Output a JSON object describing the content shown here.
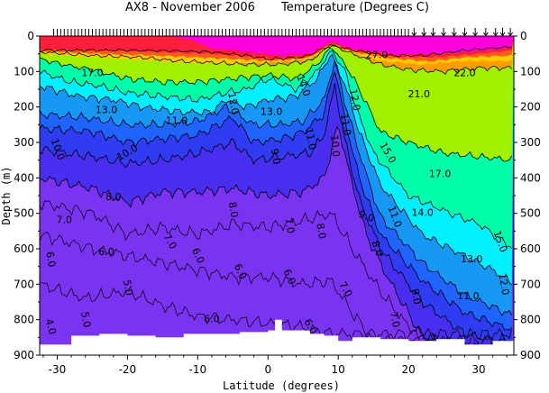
{
  "chart_data": {
    "type": "heatmap",
    "title_left": "AX8 - November 2006",
    "title_right": "Temperature (Degrees C)",
    "xlabel": "Latitude (degrees)",
    "ylabel": "Depth (m)",
    "xlim": [
      -32.5,
      35
    ],
    "ylim": [
      0,
      900
    ],
    "y_inverted": true,
    "x_ticks": [
      -30,
      -20,
      -10,
      0,
      10,
      20,
      30
    ],
    "y_ticks": [
      0,
      100,
      200,
      300,
      400,
      500,
      600,
      700,
      800,
      900
    ],
    "color_bands": [
      {
        "min": 0,
        "max": 8,
        "color": "#7a33f0"
      },
      {
        "min": 8,
        "max": 9,
        "color": "#4a2ef0"
      },
      {
        "min": 9,
        "max": 10,
        "color": "#2f3cf2"
      },
      {
        "min": 10,
        "max": 11,
        "color": "#1f64ff"
      },
      {
        "min": 11,
        "max": 12,
        "color": "#1898f5"
      },
      {
        "min": 12,
        "max": 13,
        "color": "#12c0f5"
      },
      {
        "min": 13,
        "max": 14,
        "color": "#00f0ff"
      },
      {
        "min": 14,
        "max": 15,
        "color": "#00ffa8"
      },
      {
        "min": 15,
        "max": 16,
        "color": "#13e04b"
      },
      {
        "min": 16,
        "max": 17,
        "color": "#4ee028"
      },
      {
        "min": 17,
        "max": 18,
        "color": "#a0f000"
      },
      {
        "min": 18,
        "max": 20,
        "color": "#f0f000"
      },
      {
        "min": 20,
        "max": 22,
        "color": "#ffcc00"
      },
      {
        "min": 22,
        "max": 24,
        "color": "#ff9c00"
      },
      {
        "min": 24,
        "max": 26,
        "color": "#ff5a1e"
      },
      {
        "min": 26,
        "max": 27,
        "color": "#ff1e3c"
      },
      {
        "min": 27,
        "max": 40,
        "color": "#ff00dc"
      }
    ],
    "isotherms": [
      {
        "value": 27,
        "depth": [
          [
            -32.5,
            40
          ],
          [
            -20,
            40
          ],
          [
            -13,
            42
          ],
          [
            -8,
            45
          ],
          [
            -3,
            55
          ],
          [
            0,
            65
          ],
          [
            5,
            60
          ],
          [
            9,
            25
          ],
          [
            12,
            40
          ],
          [
            17,
            55
          ],
          [
            22,
            55
          ],
          [
            28,
            40
          ],
          [
            35,
            30
          ]
        ]
      },
      {
        "value": 22,
        "depth": [
          [
            -32.5,
            45
          ],
          [
            -25,
            55
          ],
          [
            -18,
            60
          ],
          [
            -13,
            70
          ],
          [
            -8,
            75
          ],
          [
            -3,
            80
          ],
          [
            2,
            80
          ],
          [
            6,
            70
          ],
          [
            9,
            25
          ],
          [
            12,
            50
          ],
          [
            16,
            80
          ],
          [
            20,
            95
          ],
          [
            25,
            100
          ],
          [
            30,
            90
          ],
          [
            35,
            90
          ]
        ]
      },
      {
        "value": 17,
        "depth": [
          [
            -32.5,
            65
          ],
          [
            -28,
            85
          ],
          [
            -25,
            95
          ],
          [
            -20,
            120
          ],
          [
            -15,
            130
          ],
          [
            -10,
            130
          ],
          [
            -5,
            120
          ],
          [
            0,
            110
          ],
          [
            4,
            120
          ],
          [
            7,
            80
          ],
          [
            9,
            30
          ],
          [
            11,
            80
          ],
          [
            13,
            150
          ],
          [
            16,
            270
          ],
          [
            20,
            300
          ],
          [
            25,
            330
          ],
          [
            30,
            340
          ],
          [
            35,
            350
          ]
        ]
      },
      {
        "value": 14,
        "depth": [
          [
            -32.5,
            100
          ],
          [
            -28,
            130
          ],
          [
            -24,
            140
          ],
          [
            -20,
            160
          ],
          [
            -15,
            170
          ],
          [
            -10,
            180
          ],
          [
            -6,
            160
          ],
          [
            -3,
            150
          ],
          [
            0,
            120
          ],
          [
            4,
            150
          ],
          [
            7,
            100
          ],
          [
            9,
            40
          ],
          [
            11,
            100
          ],
          [
            12.5,
            200
          ],
          [
            15,
            330
          ],
          [
            20,
            450
          ],
          [
            26,
            500
          ],
          [
            30,
            530
          ],
          [
            35,
            600
          ]
        ]
      },
      {
        "value": 13,
        "depth": [
          [
            -32.5,
            140
          ],
          [
            -27,
            170
          ],
          [
            -22,
            180
          ],
          [
            -18,
            200
          ],
          [
            -12,
            215
          ],
          [
            -8,
            215
          ],
          [
            -6,
            180
          ],
          [
            -3,
            200
          ],
          [
            0,
            180
          ],
          [
            4,
            170
          ],
          [
            7,
            120
          ],
          [
            9,
            50
          ],
          [
            11,
            140
          ],
          [
            13,
            270
          ],
          [
            16,
            420
          ],
          [
            22,
            560
          ],
          [
            28,
            620
          ],
          [
            32,
            660
          ],
          [
            35,
            700
          ]
        ]
      },
      {
        "value": 11,
        "depth": [
          [
            -32.5,
            220
          ],
          [
            -26,
            230
          ],
          [
            -20,
            250
          ],
          [
            -15,
            250
          ],
          [
            -10,
            240
          ],
          [
            -6,
            200
          ],
          [
            -2,
            250
          ],
          [
            2,
            250
          ],
          [
            5,
            240
          ],
          [
            8,
            180
          ],
          [
            9.5,
            70
          ],
          [
            11,
            190
          ],
          [
            13,
            330
          ],
          [
            16,
            510
          ],
          [
            22,
            640
          ],
          [
            28,
            730
          ],
          [
            35,
            790
          ]
        ]
      },
      {
        "value": 10,
        "depth": [
          [
            -32.5,
            260
          ],
          [
            -25,
            270
          ],
          [
            -20,
            300
          ],
          [
            -15,
            290
          ],
          [
            -10,
            280
          ],
          [
            -5,
            230
          ],
          [
            -2,
            300
          ],
          [
            2,
            290
          ],
          [
            5,
            270
          ],
          [
            8,
            220
          ],
          [
            9.5,
            90
          ],
          [
            11,
            240
          ],
          [
            13,
            400
          ],
          [
            16,
            560
          ],
          [
            22,
            690
          ],
          [
            28,
            780
          ],
          [
            35,
            830
          ]
        ]
      },
      {
        "value": 9,
        "depth": [
          [
            -32.5,
            320
          ],
          [
            -25,
            340
          ],
          [
            -20,
            360
          ],
          [
            -15,
            350
          ],
          [
            -10,
            330
          ],
          [
            -5,
            300
          ],
          [
            -2,
            350
          ],
          [
            2,
            340
          ],
          [
            6,
            330
          ],
          [
            8,
            280
          ],
          [
            9.5,
            140
          ],
          [
            11,
            300
          ],
          [
            13,
            460
          ],
          [
            16,
            600
          ],
          [
            22,
            750
          ],
          [
            28,
            840
          ],
          [
            35,
            870
          ]
        ]
      },
      {
        "value": 8,
        "depth": [
          [
            -32.5,
            400
          ],
          [
            -25,
            430
          ],
          [
            -20,
            470
          ],
          [
            -15,
            440
          ],
          [
            -10,
            440
          ],
          [
            -5,
            430
          ],
          [
            0,
            450
          ],
          [
            5,
            440
          ],
          [
            8,
            400
          ],
          [
            10,
            250
          ],
          [
            12,
            420
          ],
          [
            14,
            560
          ],
          [
            17,
            680
          ],
          [
            22,
            850
          ],
          [
            35,
            900
          ]
        ]
      }
    ],
    "bottom_depth": [
      [
        -32.5,
        870
      ],
      [
        -30,
        870
      ],
      [
        -28,
        845
      ],
      [
        -24,
        840
      ],
      [
        -20,
        845
      ],
      [
        -16,
        850
      ],
      [
        -12,
        840
      ],
      [
        -8,
        840
      ],
      [
        -4,
        835
      ],
      [
        0,
        830
      ],
      [
        1,
        800
      ],
      [
        2,
        830
      ],
      [
        6,
        840
      ],
      [
        8,
        845
      ],
      [
        10,
        860
      ],
      [
        12,
        850
      ],
      [
        16,
        855
      ],
      [
        20,
        860
      ],
      [
        24,
        855
      ],
      [
        28,
        870
      ],
      [
        32,
        860
      ],
      [
        35,
        860
      ]
    ],
    "contour_labels": [
      {
        "text": "17.0",
        "lat": -25,
        "depth": 105
      },
      {
        "text": "13.0",
        "lat": -23,
        "depth": 210
      },
      {
        "text": "11.0",
        "lat": -13,
        "depth": 240
      },
      {
        "text": "10.0",
        "lat": -30,
        "depth": 320
      },
      {
        "text": "10.0",
        "lat": -20,
        "depth": 330
      },
      {
        "text": "12.0",
        "lat": -5,
        "depth": 190
      },
      {
        "text": "13.0",
        "lat": 0.5,
        "depth": 215
      },
      {
        "text": "14.0",
        "lat": 5,
        "depth": 140
      },
      {
        "text": "9.0",
        "lat": 1,
        "depth": 340
      },
      {
        "text": "11.0",
        "lat": 6,
        "depth": 290
      },
      {
        "text": "10.0",
        "lat": 9.5,
        "depth": 310
      },
      {
        "text": "8.0",
        "lat": -22,
        "depth": 455
      },
      {
        "text": "8.0",
        "lat": -5,
        "depth": 490
      },
      {
        "text": "7.0",
        "lat": -29,
        "depth": 520
      },
      {
        "text": "7.0",
        "lat": -14,
        "depth": 580
      },
      {
        "text": "7.0",
        "lat": 3,
        "depth": 535
      },
      {
        "text": "8.0",
        "lat": 7.5,
        "depth": 550
      },
      {
        "text": "6.0",
        "lat": -31,
        "depth": 630
      },
      {
        "text": "6.0",
        "lat": -23,
        "depth": 610
      },
      {
        "text": "6.0",
        "lat": -10,
        "depth": 620
      },
      {
        "text": "6.0",
        "lat": -4,
        "depth": 665
      },
      {
        "text": "6.0",
        "lat": 3,
        "depth": 680
      },
      {
        "text": "5.0",
        "lat": -20,
        "depth": 710
      },
      {
        "text": "6.0",
        "lat": -8,
        "depth": 800
      },
      {
        "text": "7.0",
        "lat": 11,
        "depth": 715
      },
      {
        "text": "6.0",
        "lat": 6,
        "depth": 820
      },
      {
        "text": "5.0",
        "lat": -26,
        "depth": 800
      },
      {
        "text": "4.0",
        "lat": -31,
        "depth": 820
      },
      {
        "text": "9.0",
        "lat": 14,
        "depth": 510
      },
      {
        "text": "8.0",
        "lat": 15.5,
        "depth": 600
      },
      {
        "text": "11.0",
        "lat": 18,
        "depth": 510
      },
      {
        "text": "9.0",
        "lat": 21,
        "depth": 735
      },
      {
        "text": "7.0",
        "lat": 18,
        "depth": 800
      },
      {
        "text": "15.0",
        "lat": 17,
        "depth": 330
      },
      {
        "text": "14.0",
        "lat": 22,
        "depth": 500
      },
      {
        "text": "17.0",
        "lat": 24.5,
        "depth": 390
      },
      {
        "text": "13.0",
        "lat": 29,
        "depth": 630
      },
      {
        "text": "11.0",
        "lat": 28.5,
        "depth": 735
      },
      {
        "text": "15.0",
        "lat": 33,
        "depth": 580
      },
      {
        "text": "12.0",
        "lat": 33.5,
        "depth": 700
      },
      {
        "text": "21.0",
        "lat": 21.5,
        "depth": 165
      },
      {
        "text": "22.0",
        "lat": 28,
        "depth": 105
      },
      {
        "text": "27.0",
        "lat": 15.5,
        "depth": 55
      },
      {
        "text": "12.0",
        "lat": 12.3,
        "depth": 180
      },
      {
        "text": "11.0",
        "lat": 11,
        "depth": 250
      }
    ],
    "label_rotation": {
      "10.0@-30": 70,
      "10.0@-20": -30,
      "12.0@-5": 80,
      "14.0@5": 70,
      "9.0@1": 80,
      "11.0@6": 80,
      "10.0@9.5": 85,
      "8.0@7.5": 80,
      "9.0@14": 20,
      "8.0@15.5": 70,
      "11.0@18": 70,
      "15.0@17": 60,
      "12.0@12.3": 80,
      "11.0@11": 80,
      "4.0@-31": 75,
      "5.0@-26": 80,
      "15.0@33": 70,
      "12.0@33.5": 80,
      "5.0@-20": 80,
      "6.0@-10": 65,
      "6.0@-4": 65,
      "6.0@3": 65,
      "7.0@11": 60,
      "6.0@6": 60,
      "9.0@21": 80,
      "7.0@18": 80,
      "8.0@-5": 80,
      "7.0@3": 80,
      "7.0@-14": 60,
      "6.0@-31": 80
    },
    "station_latitudes": [
      -30.5,
      -30,
      -29.5,
      -29,
      -28.5,
      -28,
      -27.5,
      -27,
      -26.5,
      -26,
      -25.5,
      -25,
      -24.5,
      -24,
      -23.5,
      -23,
      -22.5,
      -22,
      -21.5,
      -21,
      -20.5,
      -20,
      -19.5,
      -19,
      -18.5,
      -18,
      -17.5,
      -17,
      -16.5,
      -16,
      -15.5,
      -15,
      -14.5,
      -14,
      -13.5,
      -13,
      -12.5,
      -12,
      -11.5,
      -11,
      -10.5,
      -10,
      -9.5,
      -9,
      -8.5,
      -8,
      -7.5,
      -7,
      -6.5,
      -6,
      -5.5,
      -5,
      -4.5,
      -4,
      -3.5,
      -3,
      -2.5,
      -2,
      -1.5,
      -1,
      -0.5,
      0,
      0.5,
      1,
      1.5,
      2,
      2.5,
      3,
      3.5,
      4,
      4.5,
      5,
      5.5,
      6,
      6.5,
      7,
      7.5,
      8,
      8.5,
      9,
      9.5,
      10,
      10.5,
      11,
      11.5,
      12,
      12.5,
      13,
      13.5,
      14,
      14.5,
      15,
      15.5,
      16,
      16.5,
      17,
      17.5,
      18,
      18.5,
      19,
      19.5,
      20
    ],
    "arrow_latitudes": [
      20.8,
      22.2,
      23.5,
      25,
      26.5,
      28,
      29.5,
      31,
      32.4,
      33.4,
      34.5
    ]
  }
}
